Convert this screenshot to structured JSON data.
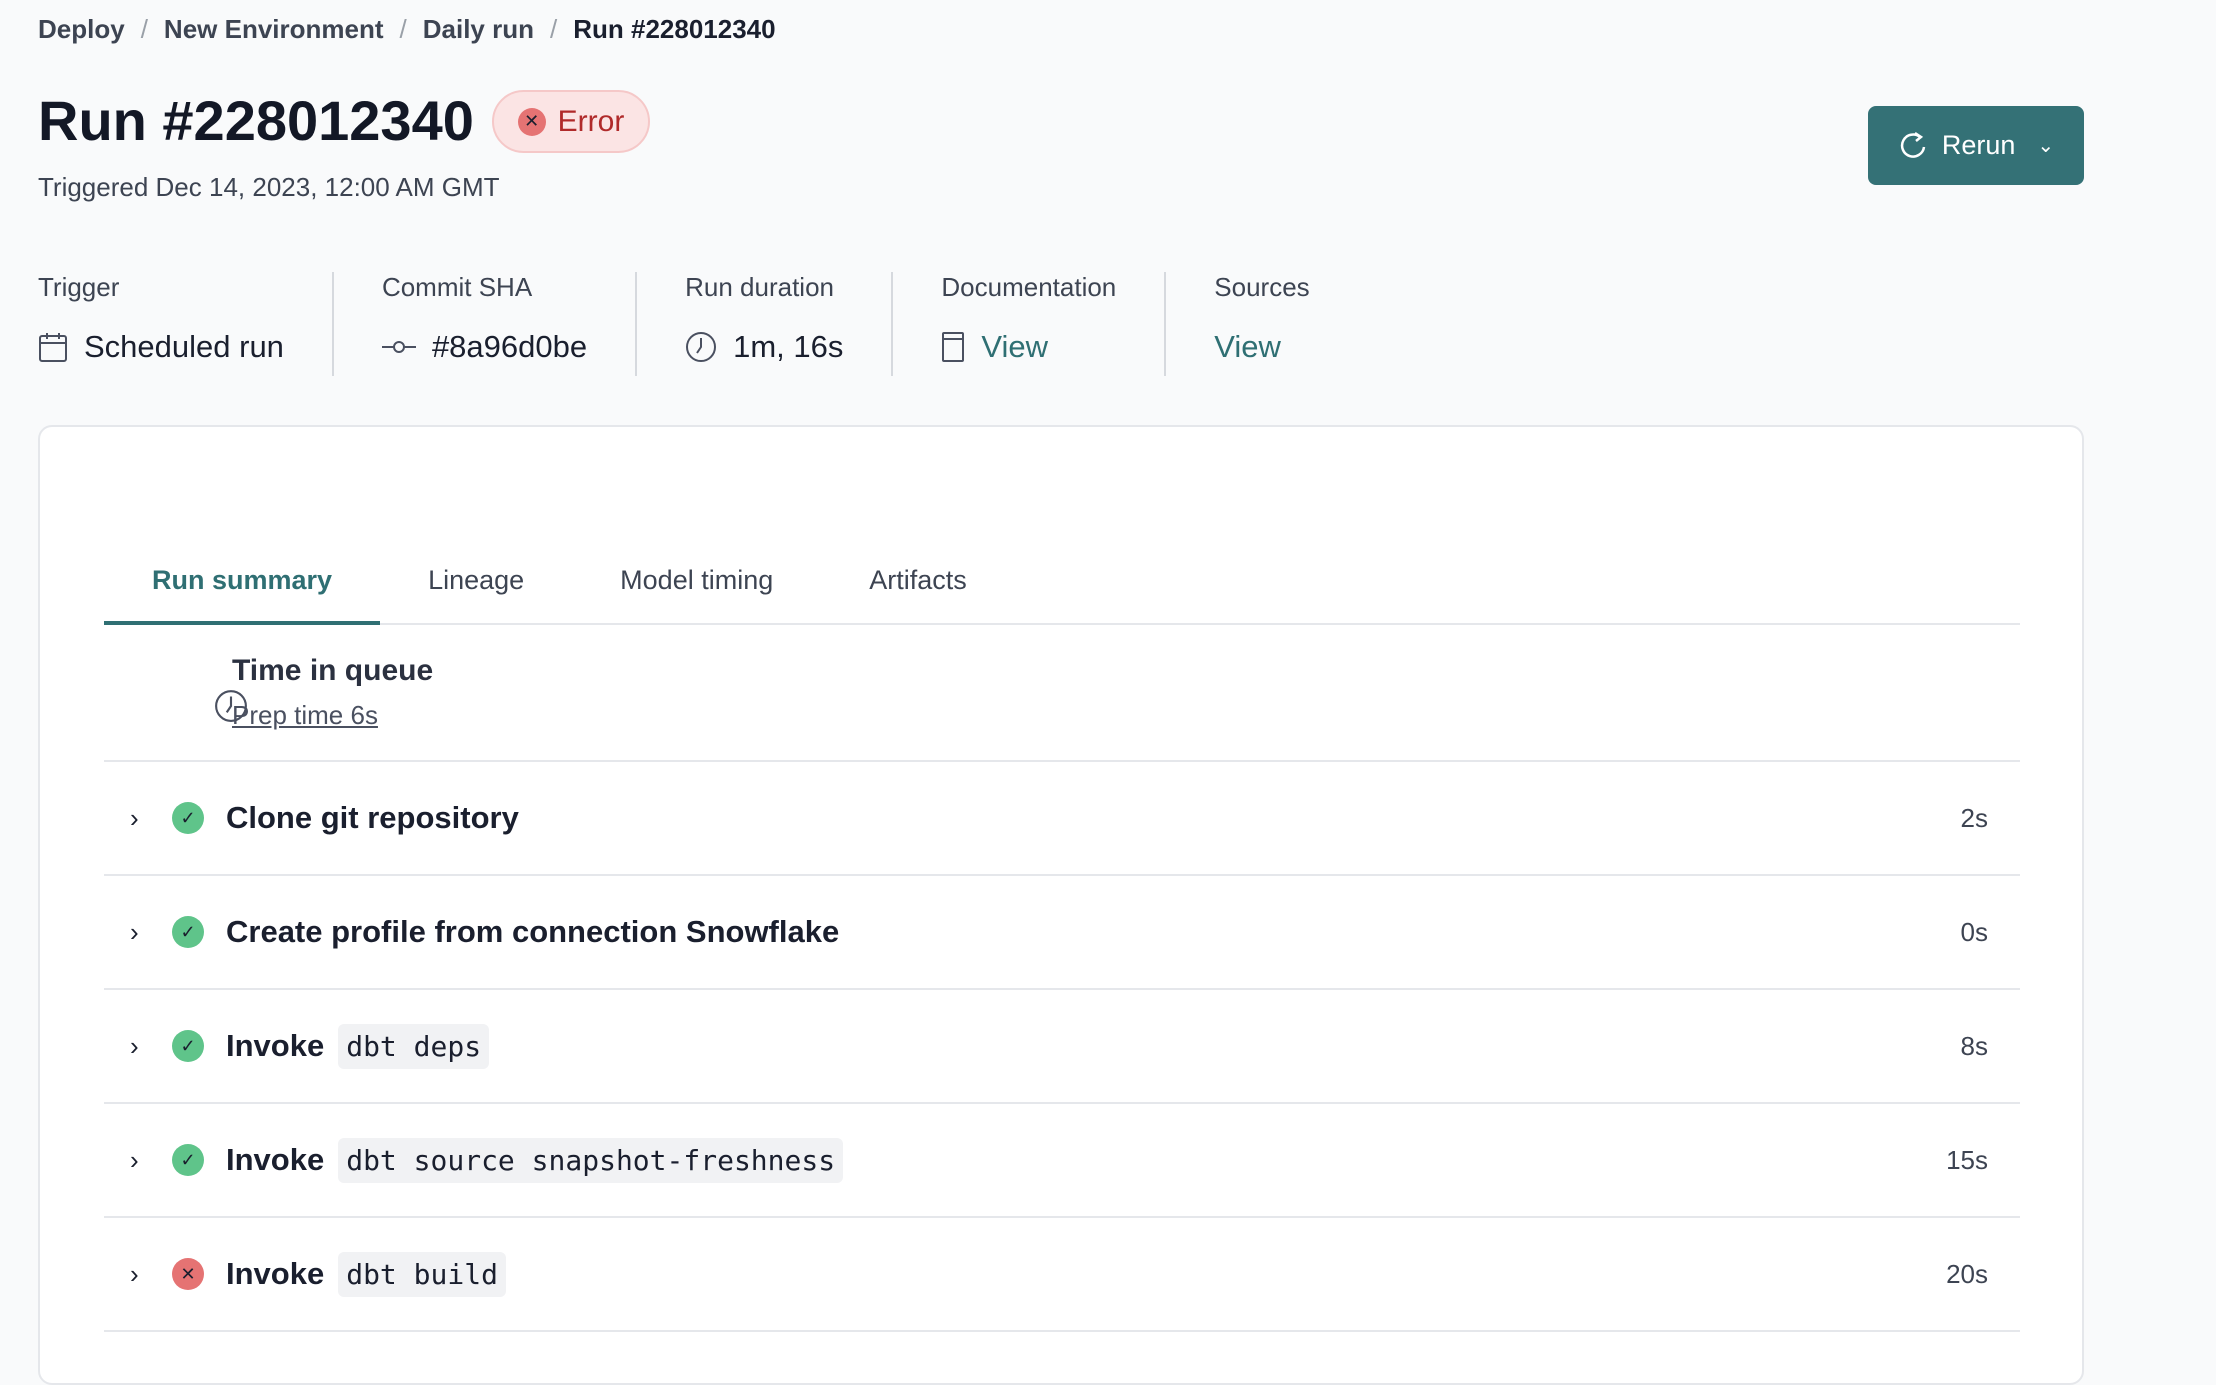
{
  "breadcrumb": [
    "Deploy",
    "New Environment",
    "Daily run",
    "Run #228012340"
  ],
  "header": {
    "title": "Run #228012340",
    "status": "Error",
    "triggered": "Triggered Dec 14, 2023, 12:00 AM GMT",
    "rerun_label": "Rerun"
  },
  "meta": [
    {
      "label": "Trigger",
      "value": "Scheduled run",
      "icon": "calendar-icon"
    },
    {
      "label": "Commit SHA",
      "value": "#8a96d0be",
      "icon": "commit-icon"
    },
    {
      "label": "Run duration",
      "value": "1m, 16s",
      "icon": "clock-icon"
    },
    {
      "label": "Documentation",
      "value": "View",
      "icon": "document-icon"
    },
    {
      "label": "Sources",
      "value": "View"
    }
  ],
  "tabs": [
    "Run summary",
    "Lineage",
    "Model timing",
    "Artifacts"
  ],
  "queue": {
    "title": "Time in queue",
    "prep": "Prep time 6s"
  },
  "steps": [
    {
      "title": "Clone git repository",
      "code": "",
      "duration": "2s",
      "status": "success"
    },
    {
      "title": "Create profile from connection Snowflake",
      "code": "",
      "duration": "0s",
      "status": "success"
    },
    {
      "title": "Invoke",
      "code": "dbt deps",
      "duration": "8s",
      "status": "success"
    },
    {
      "title": "Invoke",
      "code": "dbt source snapshot-freshness",
      "duration": "15s",
      "status": "success"
    },
    {
      "title": "Invoke",
      "code": "dbt build",
      "duration": "20s",
      "status": "error"
    }
  ],
  "colors": {
    "accent": "#347176",
    "success": "#5fc48a",
    "error": "#e57373"
  }
}
